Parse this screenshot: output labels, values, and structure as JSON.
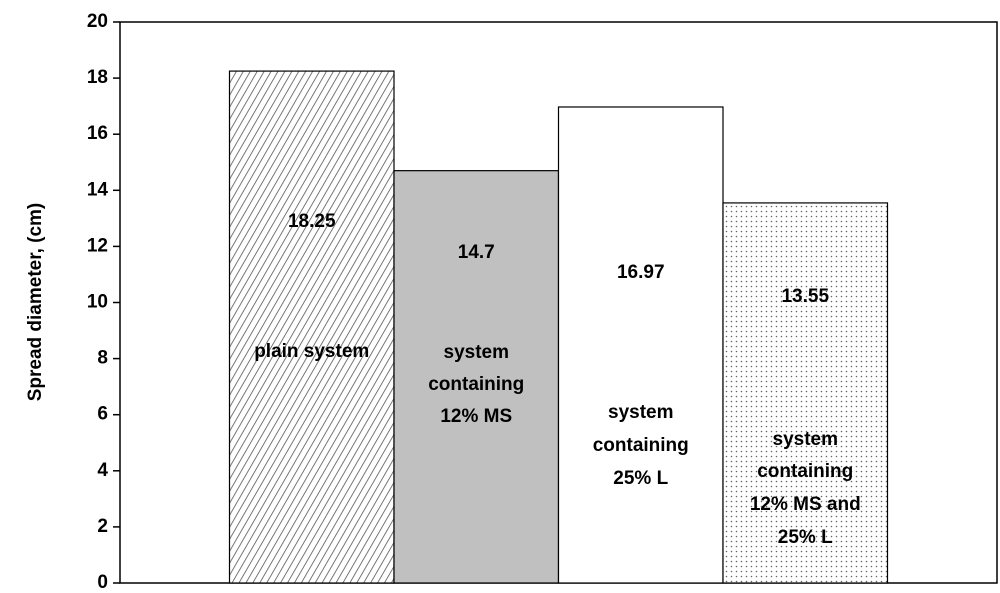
{
  "chart_data": {
    "type": "bar",
    "y_label": "Spread diameter, (cm)",
    "categories": [
      [
        "plain system"
      ],
      [
        "system",
        "containing",
        "12% MS"
      ],
      [
        "system",
        "containing",
        "25% L"
      ],
      [
        "system",
        "containing",
        "12% MS and",
        "25% L"
      ]
    ],
    "values": [
      18.25,
      14.7,
      16.97,
      13.55
    ],
    "ylim": [
      0,
      20
    ],
    "yticks": [
      0,
      2,
      4,
      6,
      8,
      10,
      12,
      14,
      16,
      18,
      20
    ]
  }
}
